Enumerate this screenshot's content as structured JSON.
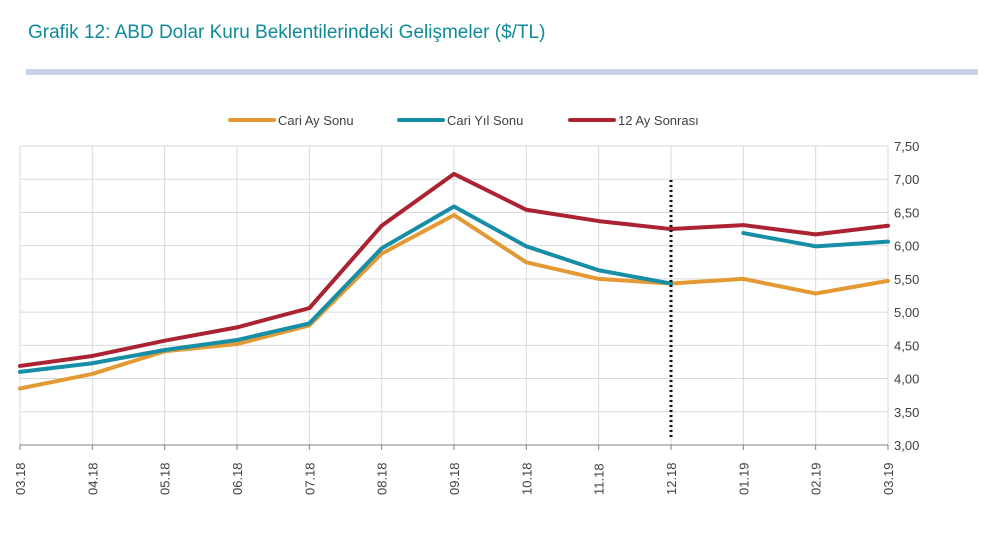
{
  "title": "Grafik 12: ABD Dolar Kuru Beklentilerindeki Gelişmeler ($/TL)",
  "chart_data": {
    "type": "line",
    "categories": [
      "03.18",
      "04.18",
      "05.18",
      "06.18",
      "07.18",
      "08.18",
      "09.18",
      "10.18",
      "11.18",
      "12.18",
      "01.19",
      "02.19",
      "03.19"
    ],
    "ylim": [
      3.0,
      7.5
    ],
    "yticks": [
      "3,00",
      "3,50",
      "4,00",
      "4,50",
      "5,00",
      "5,50",
      "6,00",
      "6,50",
      "7,00",
      "7,50"
    ],
    "y_axis_side": "right",
    "grid": true,
    "legend_position": "top",
    "vertical_marker_at": "12.18",
    "series": [
      {
        "name": "Cari Ay Sonu",
        "color": "#e39a34",
        "values": [
          3.85,
          4.07,
          4.41,
          4.52,
          4.8,
          5.88,
          6.46,
          5.75,
          5.5,
          5.43,
          5.5,
          5.28,
          5.47
        ]
      },
      {
        "name": "Cari Yıl Sonu",
        "color": "#168ea6",
        "values": [
          4.1,
          4.23,
          4.43,
          4.58,
          4.83,
          5.96,
          6.59,
          5.99,
          5.63,
          5.43,
          null,
          null,
          null
        ]
      },
      {
        "name": "Cari Yıl Sonu (2019)",
        "color": "#168ea6",
        "hidden_legend": true,
        "values": [
          null,
          null,
          null,
          null,
          null,
          null,
          null,
          null,
          null,
          null,
          6.19,
          5.99,
          6.06
        ]
      },
      {
        "name": "12 Ay Sonrası",
        "color": "#ab2333",
        "values": [
          4.19,
          4.34,
          4.57,
          4.77,
          5.06,
          6.3,
          7.08,
          6.54,
          6.37,
          6.25,
          6.31,
          6.17,
          6.3
        ]
      }
    ]
  }
}
